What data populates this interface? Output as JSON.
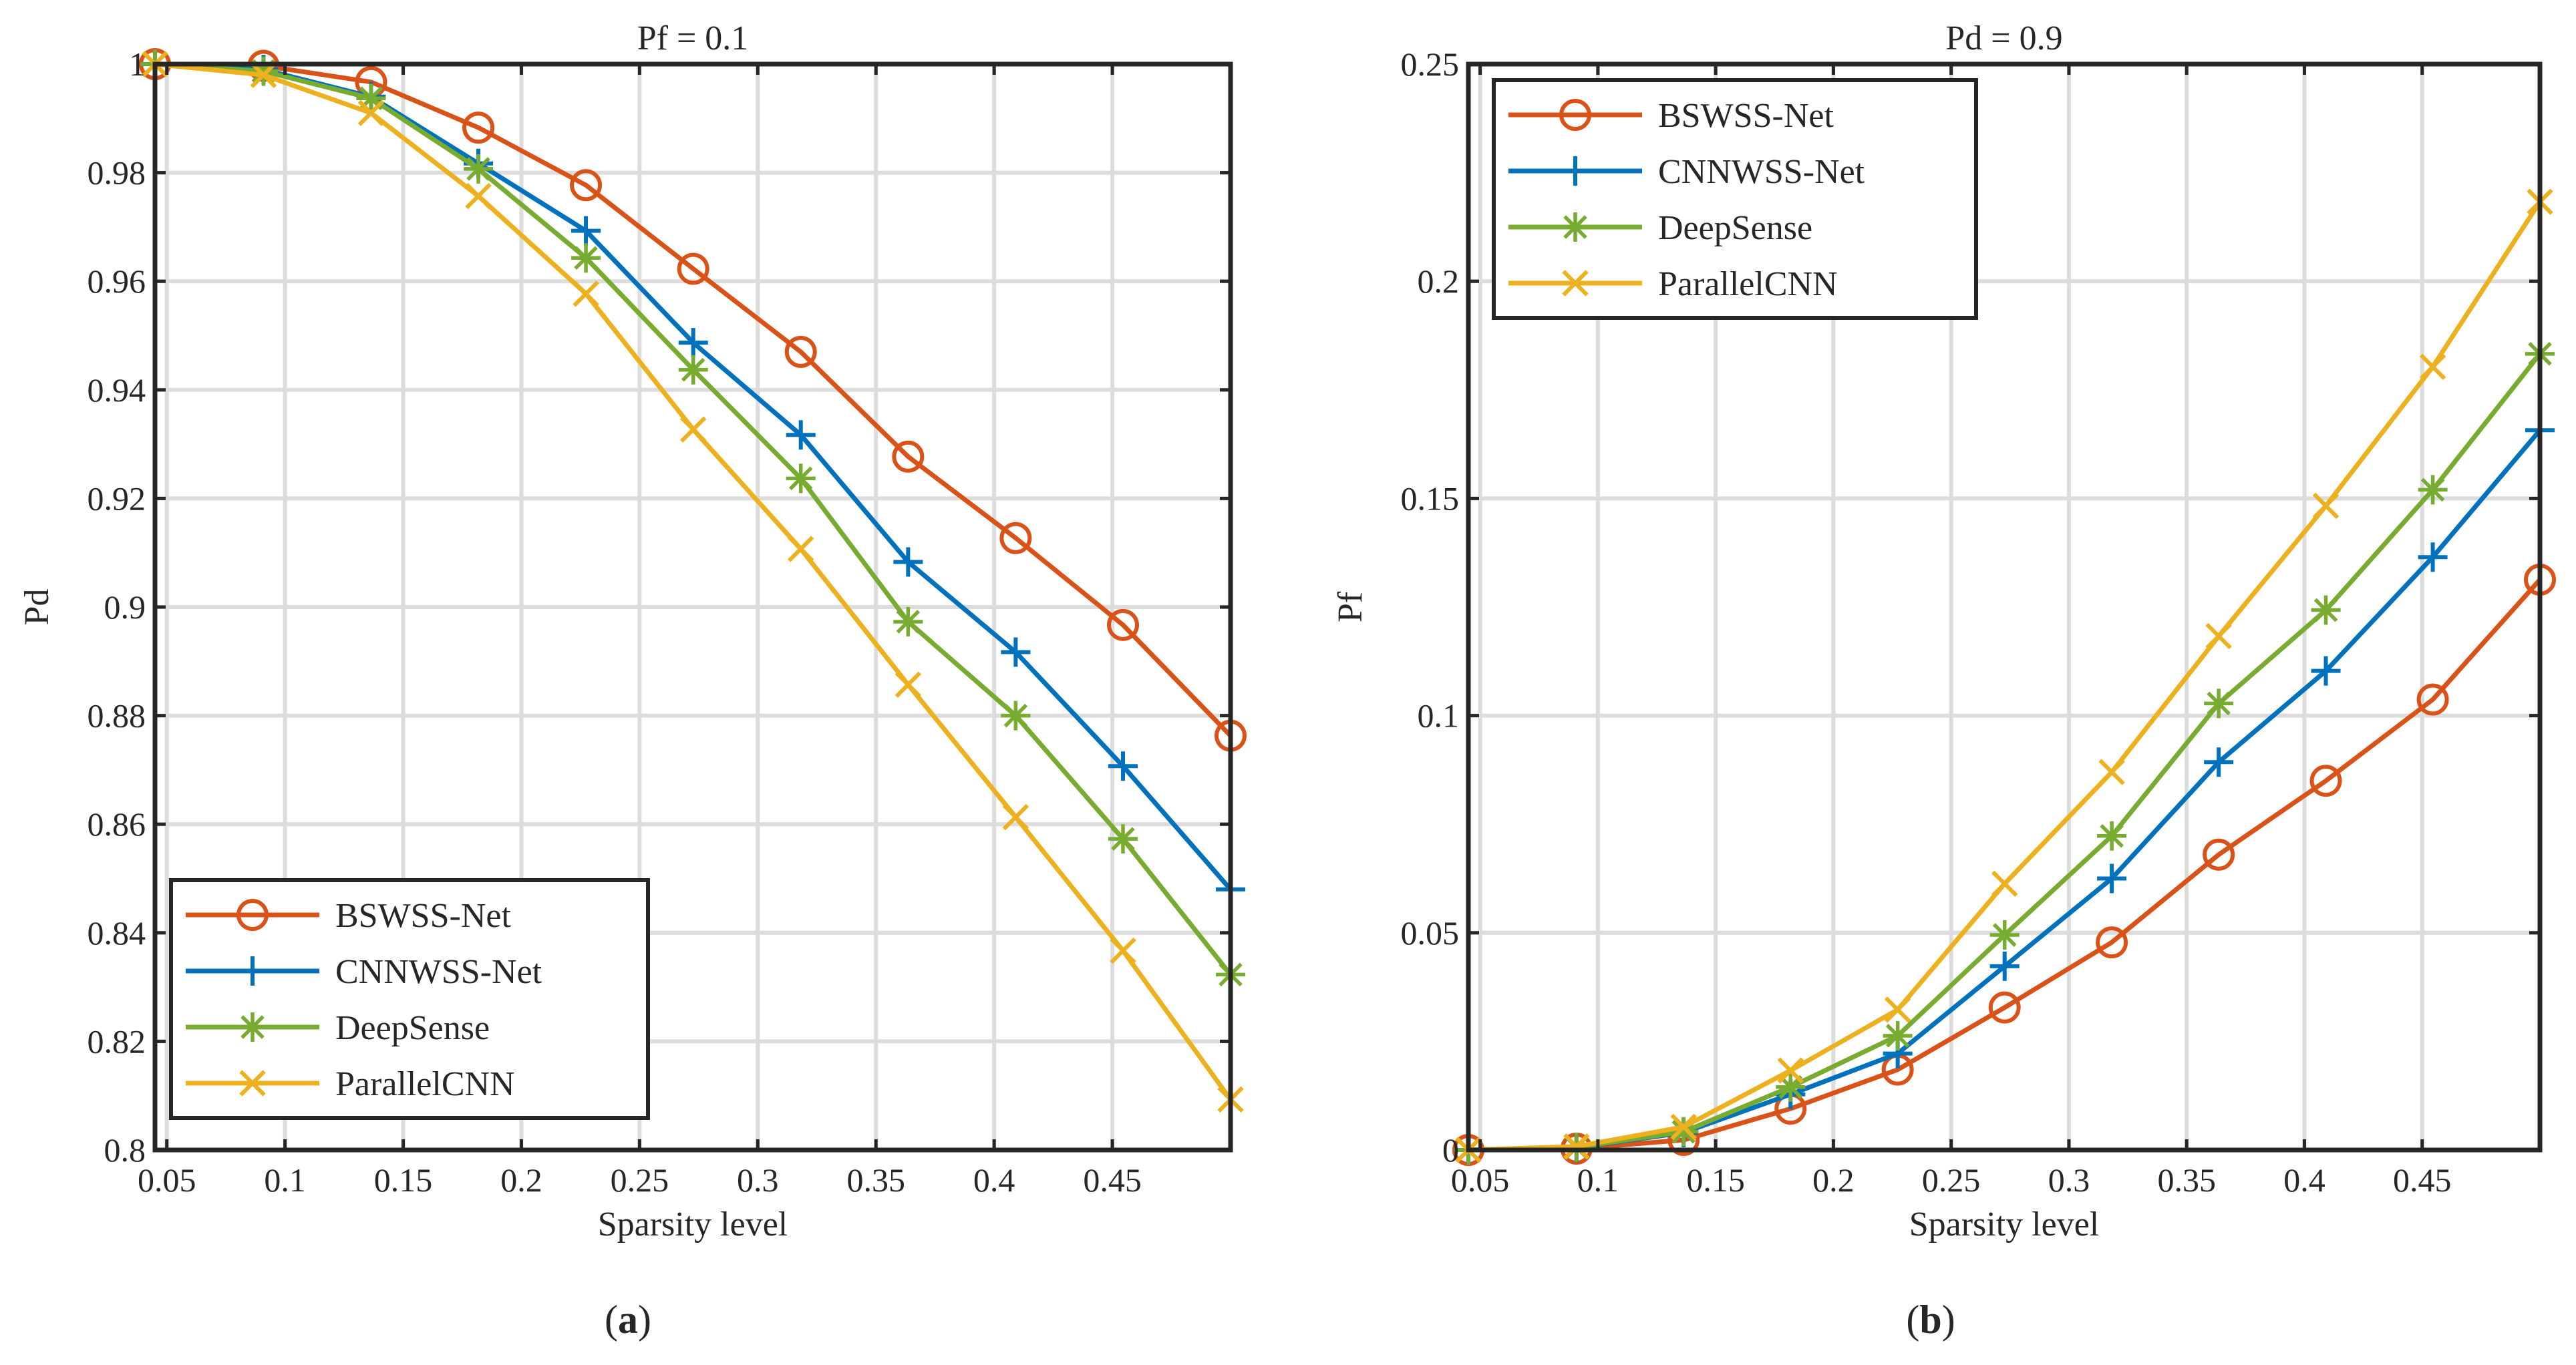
{
  "chart_data": [
    {
      "type": "line",
      "title": "Pf = 0.1",
      "xlabel": "Sparsity level",
      "ylabel": "Pd",
      "caption_label": "a",
      "xlim": [
        0.045,
        0.5
      ],
      "ylim": [
        0.8,
        1.0
      ],
      "xticks": [
        0.05,
        0.1,
        0.15,
        0.2,
        0.25,
        0.3,
        0.35,
        0.4,
        0.45
      ],
      "xtick_labels": [
        "0.05",
        "0.1",
        "0.15",
        "0.2",
        "0.25",
        "0.3",
        "0.35",
        "0.4",
        "0.45"
      ],
      "yticks": [
        0.8,
        0.82,
        0.84,
        0.86,
        0.88,
        0.9,
        0.92,
        0.94,
        0.96,
        0.98,
        1.0
      ],
      "ytick_labels": [
        "0.8",
        "0.82",
        "0.84",
        "0.86",
        "0.88",
        "0.9",
        "0.92",
        "0.94",
        "0.96",
        "0.98",
        "1"
      ],
      "grid": true,
      "legend_position": "bottom-left",
      "x": [
        0.045,
        0.0909,
        0.1364,
        0.1818,
        0.2273,
        0.2727,
        0.3182,
        0.3636,
        0.4091,
        0.4545,
        0.5
      ],
      "series": [
        {
          "name": "BSWSS-Net",
          "color": "#D95319",
          "marker": "circle",
          "values": [
            1.0,
            0.9997,
            0.9967,
            0.9883,
            0.9777,
            0.9623,
            0.947,
            0.9277,
            0.9127,
            0.8967,
            0.8763
          ]
        },
        {
          "name": "CNNWSS-Net",
          "color": "#0072BD",
          "marker": "plus",
          "values": [
            1.0,
            0.999,
            0.994,
            0.9817,
            0.9693,
            0.9487,
            0.9317,
            0.9083,
            0.8917,
            0.8707,
            0.848
          ]
        },
        {
          "name": "DeepSense",
          "color": "#77AC30",
          "marker": "asterisk",
          "values": [
            1.0,
            0.9987,
            0.9937,
            0.9807,
            0.9643,
            0.9437,
            0.9237,
            0.8973,
            0.88,
            0.8573,
            0.8323
          ]
        },
        {
          "name": "ParallelCNN",
          "color": "#EDB120",
          "marker": "x",
          "values": [
            1.0,
            0.998,
            0.991,
            0.9757,
            0.9577,
            0.9327,
            0.9107,
            0.8857,
            0.8613,
            0.8367,
            0.8093
          ]
        }
      ]
    },
    {
      "type": "line",
      "title": "Pd = 0.9",
      "xlabel": "Sparsity level",
      "ylabel": "Pf",
      "caption_label": "b",
      "xlim": [
        0.045,
        0.5
      ],
      "ylim": [
        0,
        0.25
      ],
      "xticks": [
        0.05,
        0.1,
        0.15,
        0.2,
        0.25,
        0.3,
        0.35,
        0.4,
        0.45
      ],
      "xtick_labels": [
        "0.05",
        "0.1",
        "0.15",
        "0.2",
        "0.25",
        "0.3",
        "0.35",
        "0.4",
        "0.45"
      ],
      "yticks": [
        0,
        0.05,
        0.1,
        0.15,
        0.2,
        0.25
      ],
      "ytick_labels": [
        "0",
        "0.05",
        "0.1",
        "0.15",
        "0.2",
        "0.25"
      ],
      "grid": true,
      "legend_position": "top-left",
      "x": [
        0.045,
        0.0909,
        0.1364,
        0.1818,
        0.2273,
        0.2727,
        0.3182,
        0.3636,
        0.4091,
        0.4545,
        0.5
      ],
      "series": [
        {
          "name": "BSWSS-Net",
          "color": "#D95319",
          "marker": "circle",
          "values": [
            0,
            0.0003,
            0.0023,
            0.0095,
            0.0185,
            0.0328,
            0.0478,
            0.068,
            0.085,
            0.1037,
            0.1313
          ]
        },
        {
          "name": "CNNWSS-Net",
          "color": "#0072BD",
          "marker": "plus",
          "values": [
            0,
            0.0005,
            0.004,
            0.0128,
            0.0222,
            0.0423,
            0.0625,
            0.0893,
            0.1103,
            0.1365,
            0.1657
          ]
        },
        {
          "name": "DeepSense",
          "color": "#77AC30",
          "marker": "asterisk",
          "values": [
            0,
            0.0006,
            0.0042,
            0.0145,
            0.0263,
            0.0495,
            0.0723,
            0.1028,
            0.1243,
            0.152,
            0.1833
          ]
        },
        {
          "name": "ParallelCNN",
          "color": "#EDB120",
          "marker": "x",
          "values": [
            0,
            0.0008,
            0.0053,
            0.0183,
            0.0323,
            0.0613,
            0.087,
            0.1183,
            0.1483,
            0.1803,
            0.2183
          ]
        }
      ]
    }
  ]
}
